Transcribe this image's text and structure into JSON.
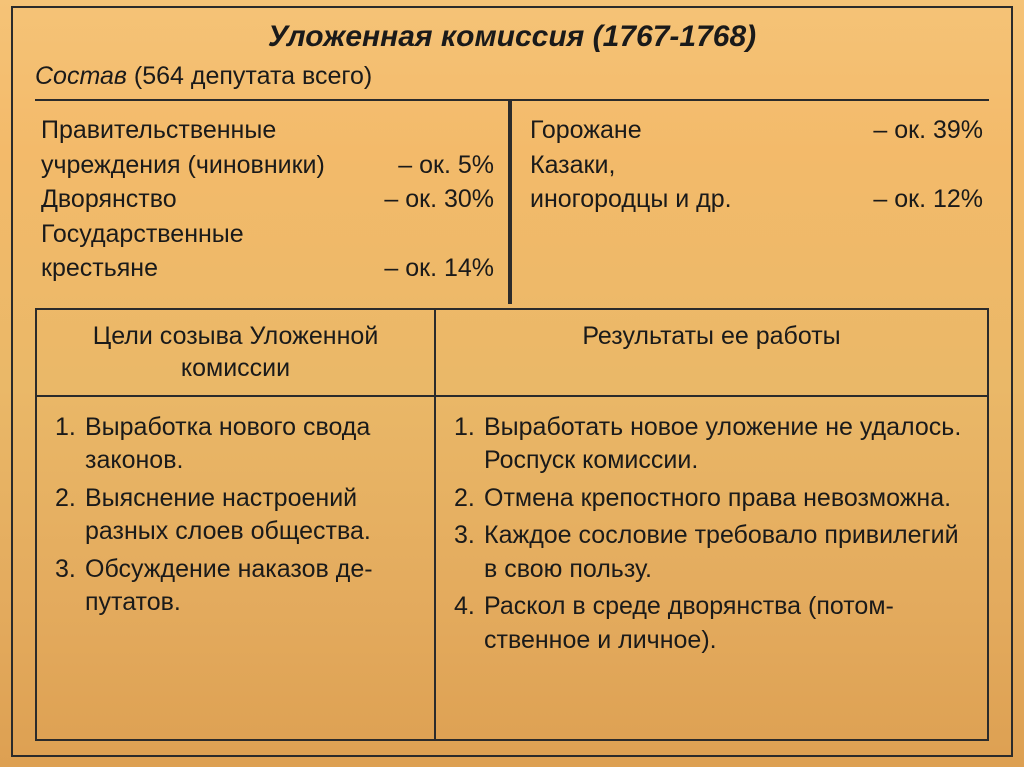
{
  "title": "Уложенная комиссия (1767-1768)",
  "subtitle_italic": "Состав",
  "subtitle_rest": " (564 депутата всего)",
  "composition": {
    "left": [
      {
        "label_lines": [
          "Правительственные",
          "учреждения (чиновники)"
        ],
        "value": "– ок. 5%"
      },
      {
        "label_lines": [
          "Дворянство"
        ],
        "value": "– ок. 30%"
      },
      {
        "label_lines": [
          "Государственные",
          "крестьяне"
        ],
        "value": "– ок. 14%"
      }
    ],
    "right": [
      {
        "label_lines": [
          "Горожане"
        ],
        "value": "– ок. 39%"
      },
      {
        "label_lines": [
          "Казаки,",
          "иногородцы и др."
        ],
        "value": "– ок. 12%"
      }
    ]
  },
  "table": {
    "head_left": "Цели созыва Уложенной комиссии",
    "head_right": "Результаты ее работы",
    "goals": [
      "Выработка нового свода законов.",
      "Выяснение настроений разных слоев общества.",
      "Обсуждение наказов де­путатов."
    ],
    "results": [
      "Выработать новое уложение не удалось. Роспуск комиссии.",
      "Отмена крепостного права невоз­можна.",
      "Каждое сословие требовало при­вилегий в свою пользу.",
      "Раскол в среде дворянства (потом­ственное и личное)."
    ]
  }
}
